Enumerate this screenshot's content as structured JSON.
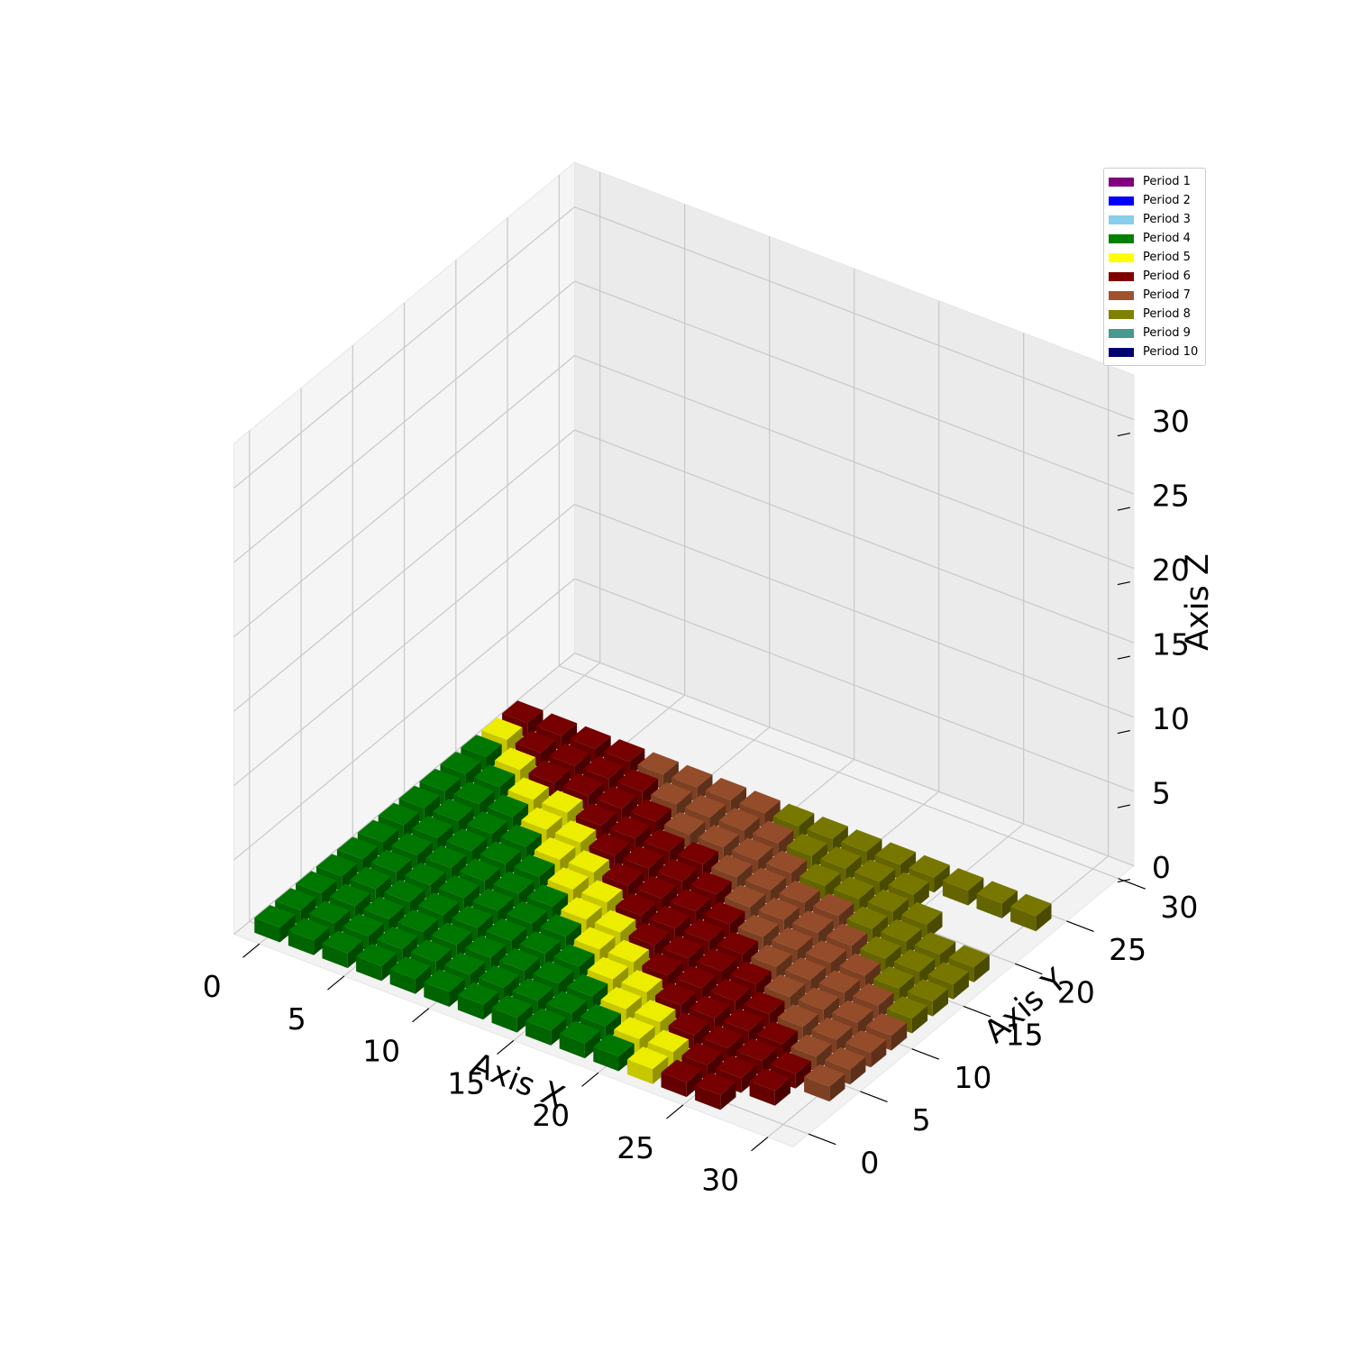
{
  "chart_data": {
    "type": "3d-bar",
    "xlabel": "Axis X",
    "ylabel": "Axis Y",
    "zlabel": "Axis Z",
    "xlim": [
      0,
      30
    ],
    "ylim": [
      0,
      30
    ],
    "zlim": [
      0,
      30
    ],
    "xticks": [
      "0",
      "5",
      "10",
      "15",
      "20",
      "25",
      "30"
    ],
    "yticks": [
      "0",
      "5",
      "10",
      "15",
      "20",
      "25",
      "30"
    ],
    "zticks": [
      "0",
      "5",
      "10",
      "15",
      "20",
      "25",
      "30"
    ],
    "grid": true,
    "legend_position": "top-right",
    "bar_height": 1,
    "series": [
      {
        "name": "Period 1",
        "color": "#800080",
        "cells": []
      },
      {
        "name": "Period 2",
        "color": "#0000ff",
        "cells": []
      },
      {
        "name": "Period 3",
        "color": "#87ceeb",
        "cells": []
      },
      {
        "name": "Period 4",
        "color": "#008000",
        "cells": [
          [
            0,
            0
          ],
          [
            2,
            0
          ],
          [
            4,
            0
          ],
          [
            6,
            0
          ],
          [
            8,
            0
          ],
          [
            10,
            0
          ],
          [
            12,
            0
          ],
          [
            14,
            0
          ],
          [
            16,
            0
          ],
          [
            18,
            0
          ],
          [
            20,
            0
          ],
          [
            0,
            2
          ],
          [
            2,
            2
          ],
          [
            4,
            2
          ],
          [
            6,
            2
          ],
          [
            8,
            2
          ],
          [
            10,
            2
          ],
          [
            12,
            2
          ],
          [
            14,
            2
          ],
          [
            16,
            2
          ],
          [
            18,
            2
          ],
          [
            0,
            4
          ],
          [
            2,
            4
          ],
          [
            4,
            4
          ],
          [
            6,
            4
          ],
          [
            8,
            4
          ],
          [
            10,
            4
          ],
          [
            12,
            4
          ],
          [
            14,
            4
          ],
          [
            16,
            4
          ],
          [
            0,
            6
          ],
          [
            2,
            6
          ],
          [
            4,
            6
          ],
          [
            6,
            6
          ],
          [
            8,
            6
          ],
          [
            10,
            6
          ],
          [
            12,
            6
          ],
          [
            14,
            6
          ],
          [
            0,
            8
          ],
          [
            2,
            8
          ],
          [
            4,
            8
          ],
          [
            6,
            8
          ],
          [
            8,
            8
          ],
          [
            10,
            8
          ],
          [
            12,
            8
          ],
          [
            0,
            10
          ],
          [
            2,
            10
          ],
          [
            4,
            10
          ],
          [
            6,
            10
          ],
          [
            8,
            10
          ],
          [
            10,
            10
          ],
          [
            0,
            12
          ],
          [
            2,
            12
          ],
          [
            4,
            12
          ],
          [
            6,
            12
          ],
          [
            8,
            12
          ],
          [
            0,
            14
          ],
          [
            2,
            14
          ],
          [
            4,
            14
          ],
          [
            6,
            14
          ],
          [
            0,
            16
          ],
          [
            2,
            16
          ],
          [
            4,
            16
          ],
          [
            0,
            18
          ],
          [
            2,
            18
          ],
          [
            0,
            20
          ]
        ]
      },
      {
        "name": "Period 5",
        "color": "#ffff00",
        "cells": [
          [
            22,
            0
          ],
          [
            20,
            2
          ],
          [
            18,
            4
          ],
          [
            16,
            6
          ],
          [
            14,
            8
          ],
          [
            12,
            10
          ],
          [
            10,
            12
          ],
          [
            8,
            14
          ],
          [
            6,
            16
          ],
          [
            4,
            18
          ],
          [
            2,
            20
          ],
          [
            0,
            22
          ],
          [
            22,
            2
          ],
          [
            20,
            4
          ],
          [
            18,
            6
          ],
          [
            16,
            8
          ],
          [
            14,
            10
          ],
          [
            12,
            12
          ],
          [
            10,
            14
          ],
          [
            8,
            16
          ],
          [
            6,
            18
          ]
        ]
      },
      {
        "name": "Period 6",
        "color": "#800000",
        "cells": [
          [
            24,
            0
          ],
          [
            26,
            0
          ],
          [
            24,
            2
          ],
          [
            26,
            2
          ],
          [
            28,
            2
          ],
          [
            22,
            4
          ],
          [
            24,
            4
          ],
          [
            26,
            4
          ],
          [
            28,
            4
          ],
          [
            20,
            6
          ],
          [
            22,
            6
          ],
          [
            24,
            6
          ],
          [
            26,
            6
          ],
          [
            18,
            8
          ],
          [
            20,
            8
          ],
          [
            22,
            8
          ],
          [
            24,
            8
          ],
          [
            16,
            10
          ],
          [
            18,
            10
          ],
          [
            20,
            10
          ],
          [
            22,
            10
          ],
          [
            14,
            12
          ],
          [
            16,
            12
          ],
          [
            18,
            12
          ],
          [
            20,
            12
          ],
          [
            12,
            14
          ],
          [
            14,
            14
          ],
          [
            16,
            14
          ],
          [
            18,
            14
          ],
          [
            10,
            16
          ],
          [
            12,
            16
          ],
          [
            14,
            16
          ],
          [
            16,
            16
          ],
          [
            8,
            18
          ],
          [
            10,
            18
          ],
          [
            12,
            18
          ],
          [
            14,
            18
          ],
          [
            4,
            20
          ],
          [
            6,
            20
          ],
          [
            8,
            20
          ],
          [
            10,
            20
          ],
          [
            2,
            22
          ],
          [
            4,
            22
          ],
          [
            6,
            22
          ],
          [
            8,
            22
          ],
          [
            0,
            24
          ],
          [
            2,
            24
          ],
          [
            4,
            24
          ],
          [
            6,
            24
          ]
        ]
      },
      {
        "name": "Period 7",
        "color": "#a0522d",
        "cells": [
          [
            28,
            6
          ],
          [
            30,
            4
          ],
          [
            30,
            6
          ],
          [
            26,
            8
          ],
          [
            28,
            8
          ],
          [
            30,
            8
          ],
          [
            24,
            10
          ],
          [
            26,
            10
          ],
          [
            28,
            10
          ],
          [
            30,
            10
          ],
          [
            22,
            12
          ],
          [
            24,
            12
          ],
          [
            26,
            12
          ],
          [
            28,
            12
          ],
          [
            20,
            14
          ],
          [
            22,
            14
          ],
          [
            24,
            14
          ],
          [
            26,
            14
          ],
          [
            18,
            16
          ],
          [
            20,
            16
          ],
          [
            22,
            16
          ],
          [
            24,
            16
          ],
          [
            16,
            18
          ],
          [
            18,
            18
          ],
          [
            20,
            18
          ],
          [
            22,
            18
          ],
          [
            12,
            20
          ],
          [
            14,
            20
          ],
          [
            16,
            20
          ],
          [
            18,
            20
          ],
          [
            10,
            22
          ],
          [
            12,
            22
          ],
          [
            14,
            22
          ],
          [
            16,
            22
          ],
          [
            8,
            24
          ],
          [
            10,
            24
          ],
          [
            12,
            24
          ],
          [
            14,
            24
          ]
        ]
      },
      {
        "name": "Period 8",
        "color": "#808000",
        "cells": [
          [
            30,
            12
          ],
          [
            28,
            14
          ],
          [
            30,
            14
          ],
          [
            26,
            16
          ],
          [
            28,
            16
          ],
          [
            30,
            16
          ],
          [
            24,
            18
          ],
          [
            26,
            18
          ],
          [
            28,
            18
          ],
          [
            30,
            18
          ],
          [
            20,
            20
          ],
          [
            22,
            20
          ],
          [
            24,
            20
          ],
          [
            26,
            20
          ],
          [
            18,
            22
          ],
          [
            20,
            22
          ],
          [
            22,
            22
          ],
          [
            24,
            22
          ],
          [
            16,
            24
          ],
          [
            18,
            24
          ],
          [
            20,
            24
          ],
          [
            22,
            24
          ],
          [
            24,
            24
          ],
          [
            26,
            24
          ],
          [
            28,
            24
          ],
          [
            30,
            24
          ]
        ]
      },
      {
        "name": "Period 9",
        "color": "#45998d",
        "cells": []
      },
      {
        "name": "Period 10",
        "color": "#000070",
        "cells": []
      }
    ]
  }
}
